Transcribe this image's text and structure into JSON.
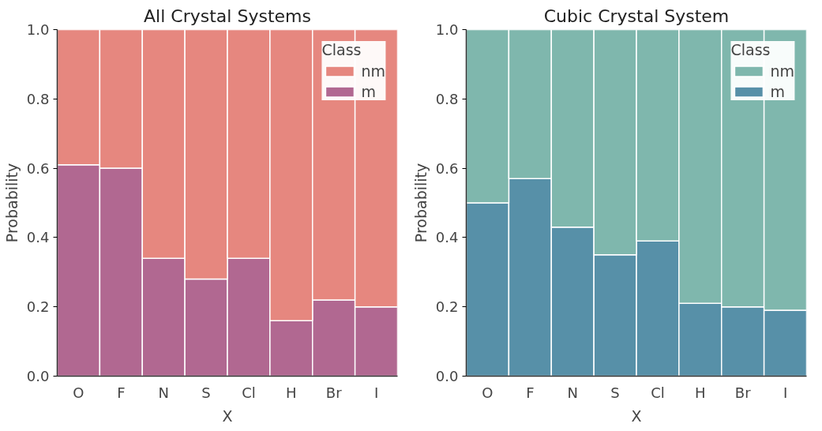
{
  "chart_data": [
    {
      "type": "bar",
      "title": "All Crystal Systems",
      "xlabel": "X",
      "ylabel": "Probability",
      "legend_title": "Class",
      "stacked": true,
      "legend": "top right",
      "categories": [
        "O",
        "F",
        "N",
        "S",
        "Cl",
        "H",
        "Br",
        "I"
      ],
      "series": [
        {
          "name": "m",
          "color": "#b16891",
          "values": [
            0.61,
            0.6,
            0.34,
            0.28,
            0.34,
            0.16,
            0.22,
            0.2
          ]
        },
        {
          "name": "nm",
          "color": "#e6877f",
          "values": [
            0.39,
            0.4,
            0.66,
            0.72,
            0.66,
            0.84,
            0.78,
            0.8
          ]
        }
      ],
      "ylim": [
        0,
        1
      ],
      "yticks": [
        {
          "value": 0,
          "label": "0.0"
        },
        {
          "value": 0.2,
          "label": "0.2"
        },
        {
          "value": 0.4,
          "label": "0.4"
        },
        {
          "value": 0.6,
          "label": "0.6"
        },
        {
          "value": 0.8,
          "label": "0.8"
        },
        {
          "value": 1,
          "label": "1.0"
        }
      ]
    },
    {
      "type": "bar",
      "title": "Cubic Crystal System",
      "xlabel": "X",
      "ylabel": "Probability",
      "legend_title": "Class",
      "stacked": true,
      "legend": "top right",
      "categories": [
        "O",
        "F",
        "N",
        "S",
        "Cl",
        "H",
        "Br",
        "I"
      ],
      "series": [
        {
          "name": "m",
          "color": "#5790a8",
          "values": [
            0.5,
            0.57,
            0.43,
            0.35,
            0.39,
            0.21,
            0.2,
            0.19
          ]
        },
        {
          "name": "nm",
          "color": "#7fb7ad",
          "values": [
            0.5,
            0.43,
            0.57,
            0.65,
            0.61,
            0.79,
            0.8,
            0.81
          ]
        }
      ],
      "ylim": [
        0,
        1
      ],
      "yticks": [
        {
          "value": 0,
          "label": "0.0"
        },
        {
          "value": 0.2,
          "label": "0.2"
        },
        {
          "value": 0.4,
          "label": "0.4"
        },
        {
          "value": 0.6,
          "label": "0.6"
        },
        {
          "value": 0.8,
          "label": "0.8"
        },
        {
          "value": 1,
          "label": "1.0"
        }
      ]
    }
  ]
}
